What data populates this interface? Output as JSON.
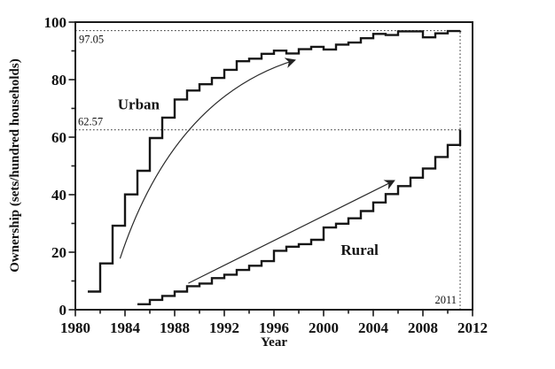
{
  "figure": {
    "background_color": "#ffffff",
    "line_color": "#1a1a1a",
    "ref_line_color": "#4a4a4a"
  },
  "chart_data": {
    "type": "line",
    "line_style": "step-post",
    "title": "",
    "xlabel": "Year",
    "ylabel": "Ownership (sets/hundred households)",
    "xlim": [
      1980,
      2012
    ],
    "ylim": [
      0,
      100
    ],
    "grid": false,
    "legend_position": "inline-labels",
    "x_ticks": {
      "major": [
        1980,
        1984,
        1988,
        1992,
        1996,
        2000,
        2004,
        2008,
        2012
      ],
      "minor": [
        1982,
        1986,
        1990,
        1994,
        1998,
        2002,
        2006,
        2010
      ]
    },
    "y_ticks": {
      "major": [
        0,
        20,
        40,
        60,
        80,
        100
      ],
      "minor": [
        10,
        30,
        50,
        70,
        90
      ]
    },
    "series": [
      {
        "name": "Urban",
        "x": [
          1981,
          1982,
          1983,
          1984,
          1985,
          1986,
          1987,
          1988,
          1989,
          1990,
          1991,
          1992,
          1993,
          1994,
          1995,
          1996,
          1997,
          1998,
          1999,
          2000,
          2001,
          2002,
          2003,
          2004,
          2005,
          2006,
          2007,
          2008,
          2009,
          2010,
          2011
        ],
        "values": [
          6.3,
          16.1,
          29.2,
          40.1,
          48.3,
          59.7,
          66.8,
          73.1,
          76.2,
          78.4,
          80.6,
          83.4,
          86.4,
          87.3,
          89.0,
          90.1,
          89.1,
          90.6,
          91.4,
          90.5,
          92.2,
          92.9,
          94.4,
          95.9,
          95.5,
          96.8,
          96.8,
          94.7,
          96.1,
          96.9,
          97.05
        ],
        "label_anchor": {
          "x": 1985.1,
          "y": 71.5
        }
      },
      {
        "name": "Rural",
        "x": [
          1985,
          1986,
          1987,
          1988,
          1989,
          1990,
          1991,
          1992,
          1993,
          1994,
          1995,
          1996,
          1997,
          1998,
          1999,
          2000,
          2001,
          2002,
          2003,
          2004,
          2005,
          2006,
          2007,
          2008,
          2009,
          2010,
          2011
        ],
        "values": [
          1.9,
          3.4,
          4.8,
          6.3,
          8.2,
          9.1,
          11.0,
          12.2,
          13.8,
          15.3,
          16.9,
          20.5,
          21.9,
          22.8,
          24.3,
          28.6,
          29.9,
          31.8,
          34.3,
          37.3,
          40.2,
          43.0,
          45.9,
          49.1,
          53.1,
          57.3,
          62.57
        ],
        "label_anchor": {
          "x": 2002.9,
          "y": 20.9
        }
      }
    ],
    "reference_lines_h": [
      {
        "value": 97.05,
        "label": "97.05"
      },
      {
        "value": 62.57,
        "label": "62.57"
      }
    ],
    "reference_line_v": {
      "value": 2011,
      "label": "2011"
    },
    "annotations": {
      "arrows": [
        {
          "name": "urban-trend-arrow",
          "from": {
            "x": 1983.6,
            "y": 17.8
          },
          "ctrl": {
            "x": 1987.9,
            "y": 73.8
          },
          "to": {
            "x": 1997.7,
            "y": 86.8
          }
        },
        {
          "name": "rural-trend-arrow",
          "from": {
            "x": 1989.1,
            "y": 9.2
          },
          "to": {
            "x": 2005.7,
            "y": 44.9
          }
        }
      ]
    }
  }
}
